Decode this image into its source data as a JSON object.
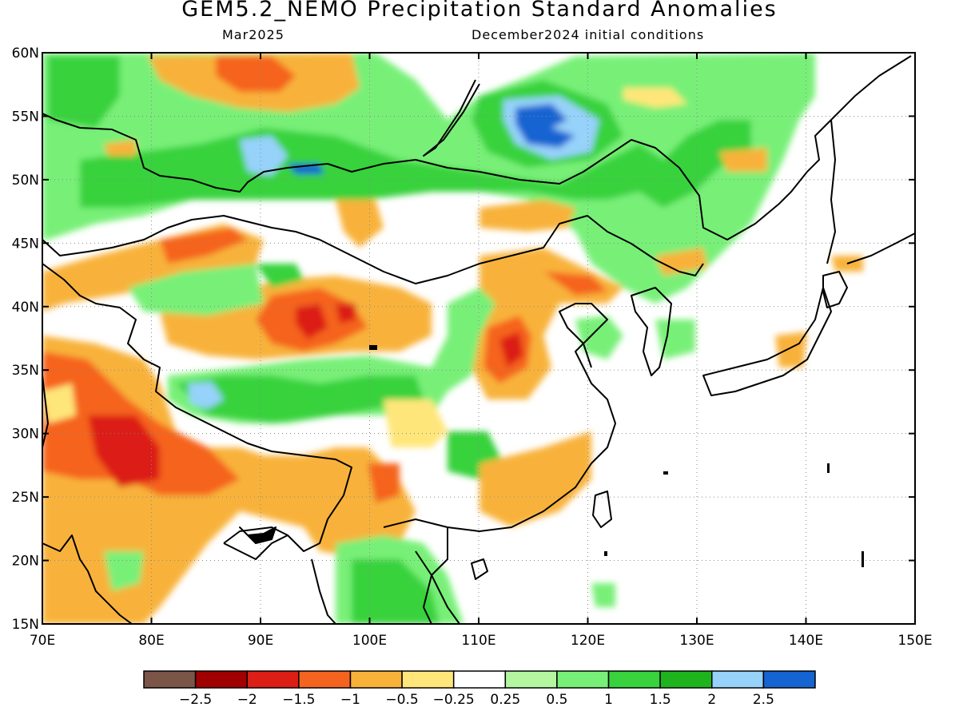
{
  "header": {
    "title": "GEM5.2_NEMO Precipitation Standard Anomalies",
    "valid_month": "Mar2025",
    "init_conditions": "December2024 initial conditions"
  },
  "map": {
    "lon_range": [
      70,
      150
    ],
    "lat_range": [
      15,
      60
    ],
    "lon_ticks": [
      "70E",
      "80E",
      "90E",
      "100E",
      "110E",
      "120E",
      "130E",
      "140E",
      "150E"
    ],
    "lat_ticks": [
      "60N",
      "55N",
      "50N",
      "45N",
      "40N",
      "35N",
      "30N",
      "25N",
      "20N",
      "15N"
    ],
    "grid": "dotted"
  },
  "colorbar": {
    "colors": [
      "#7a5548",
      "#a00000",
      "#dc1e14",
      "#f5641e",
      "#f8b23a",
      "#ffe67a",
      "#ffffff",
      "#b4f5a0",
      "#78f078",
      "#37d23c",
      "#1eb41e",
      "#96d2fa",
      "#1464d2"
    ],
    "labels": [
      "−2.5",
      "−2",
      "−1.5",
      "−1",
      "−0.5",
      "−0.25",
      "0.25",
      "0.5",
      "1",
      "1.5",
      "2",
      "2.5"
    ]
  }
}
